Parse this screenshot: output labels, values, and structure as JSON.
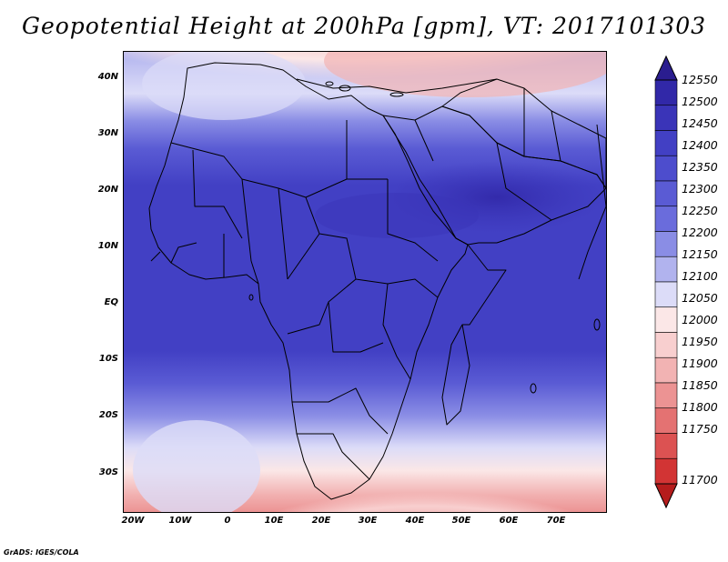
{
  "title": "Geopotential Height at 200hPa [gpm], VT: 2017101303",
  "credit": "GrADS: IGES/COLA",
  "map": {
    "region": "Africa and Middle East",
    "lat_labels": [
      "40N",
      "30N",
      "20N",
      "10N",
      "EQ",
      "10S",
      "20S",
      "30S"
    ],
    "lon_labels": [
      "20W",
      "10W",
      "0",
      "10E",
      "20E",
      "30E",
      "40E",
      "50E",
      "60E",
      "70E"
    ],
    "features": [
      "land-boundaries",
      "country-borders",
      "coastlines"
    ]
  },
  "colorbar": {
    "levels": [
      "12550",
      "12500",
      "12450",
      "12400",
      "12350",
      "12300",
      "12250",
      "12200",
      "12150",
      "12100",
      "12050",
      "12000",
      "11950",
      "11900",
      "11850",
      "11800",
      "11750",
      "11700"
    ],
    "colors": [
      "#2a1d8f",
      "#3128a8",
      "#3a34b8",
      "#4240c4",
      "#4d4dcd",
      "#5a5bd4",
      "#6a6cdc",
      "#8a8de5",
      "#b1b3ee",
      "#dcdcf8",
      "#fbe7e7",
      "#f8cfcf",
      "#f2b3b3",
      "#ec9393",
      "#e47272",
      "#dc5252",
      "#d23434",
      "#b51c1c"
    ]
  }
}
